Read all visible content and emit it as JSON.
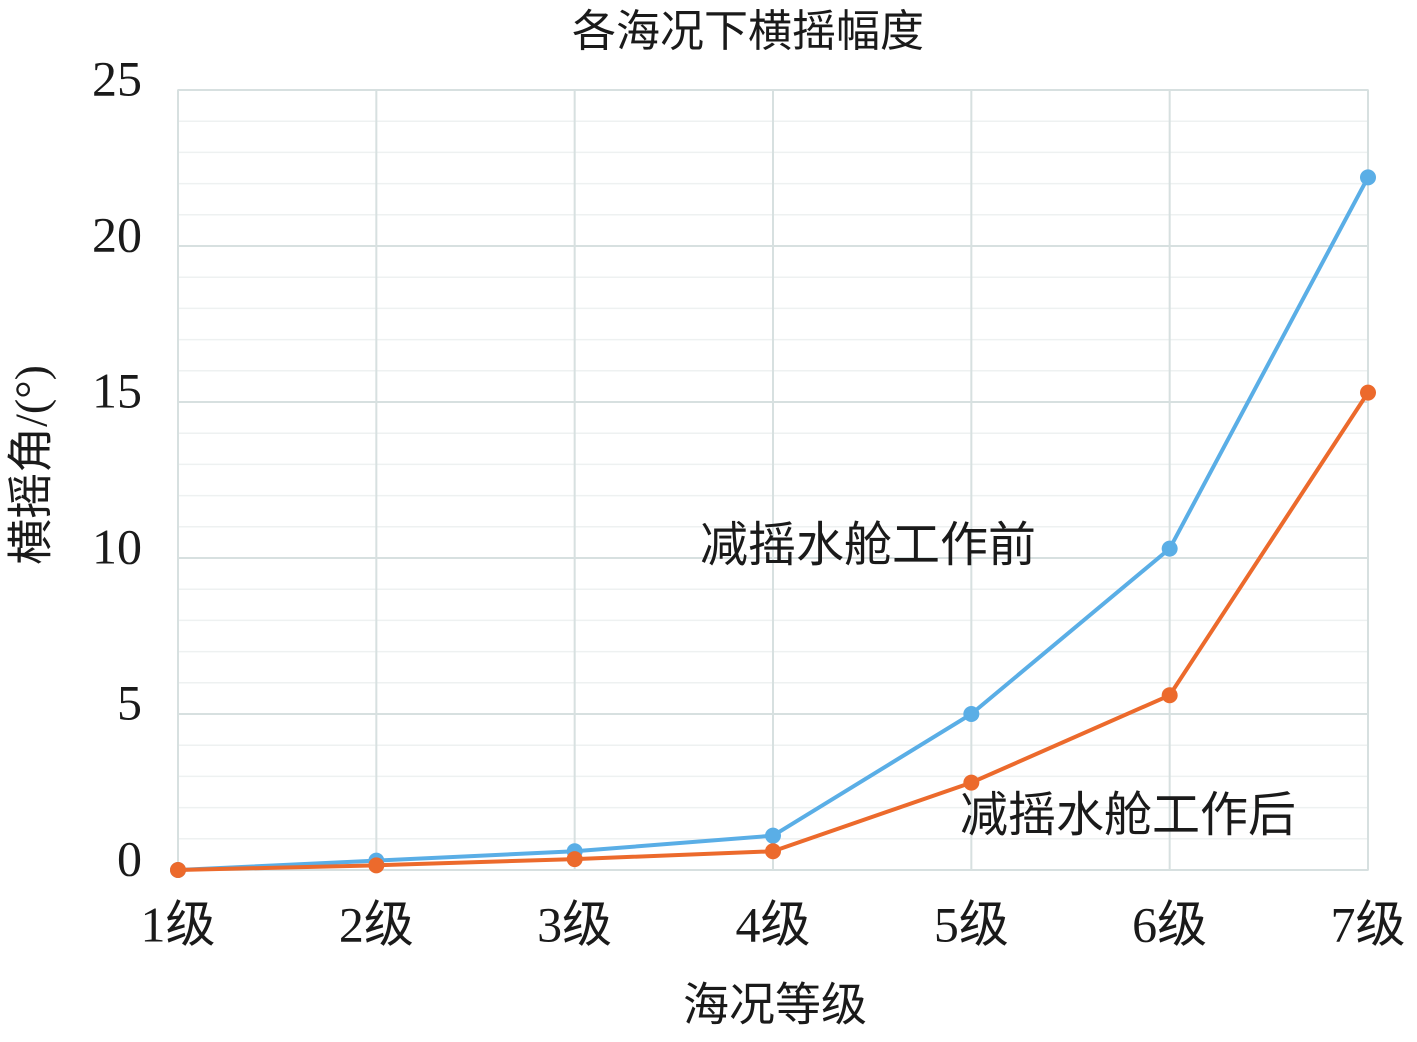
{
  "chart_data": {
    "type": "line",
    "title": "各海况下横摇幅度",
    "x_label": "海况等级",
    "y_label": "横摇角/(°)",
    "categories": [
      "1级",
      "2级",
      "3级",
      "4级",
      "5级",
      "6级",
      "7级"
    ],
    "series": [
      {
        "name": "减摇水舱工作前",
        "color": "#5aaee6",
        "values": [
          0,
          0.3,
          0.6,
          1.1,
          5.0,
          10.3,
          22.2
        ]
      },
      {
        "name": "减摇水舱工作后",
        "color": "#ec6a2c",
        "values": [
          0,
          0.15,
          0.35,
          0.6,
          2.8,
          5.6,
          15.3
        ]
      }
    ],
    "ylim": [
      0,
      25
    ],
    "yticks": [
      0,
      5,
      10,
      15,
      20,
      25
    ],
    "grid": true,
    "minor_grid": true
  }
}
